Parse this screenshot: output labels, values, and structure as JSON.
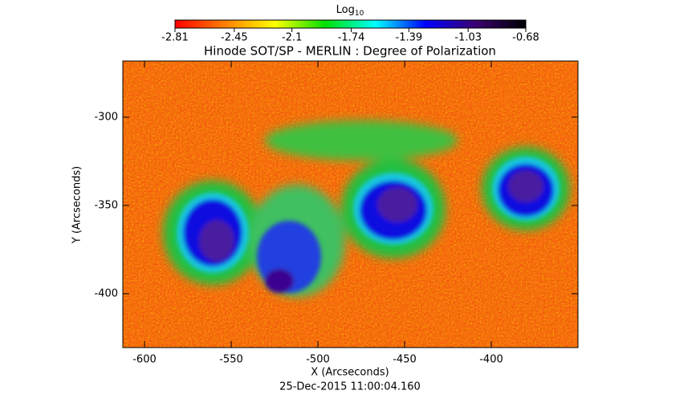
{
  "chart_data": {
    "type": "heatmap",
    "title": "Hinode SOT/SP - MERLIN : Degree of Polarization",
    "subtitle": "25-Dec-2015 11:00:04.160",
    "x_label": "X (Arcseconds)",
    "y_label": "Y (Arcseconds)",
    "xlim": [
      -612.5,
      -350
    ],
    "xticks": [
      -600,
      -550,
      -500,
      -450,
      -400
    ],
    "ylim": [
      -430.5,
      -268.2
    ],
    "yticks": [
      -400,
      -350,
      -300
    ],
    "colorbar": {
      "label": "Log",
      "label_sub": "10",
      "lim": [
        -2.81,
        -0.68
      ],
      "ticks": [
        -2.81,
        -2.45,
        -2.1,
        -1.74,
        -1.39,
        -1.03,
        -0.68
      ],
      "colors": [
        "#ff0000",
        "#ff8000",
        "#ffff00",
        "#00e000",
        "#00ffff",
        "#0000ff",
        "#3a0070",
        "#000000"
      ]
    }
  }
}
